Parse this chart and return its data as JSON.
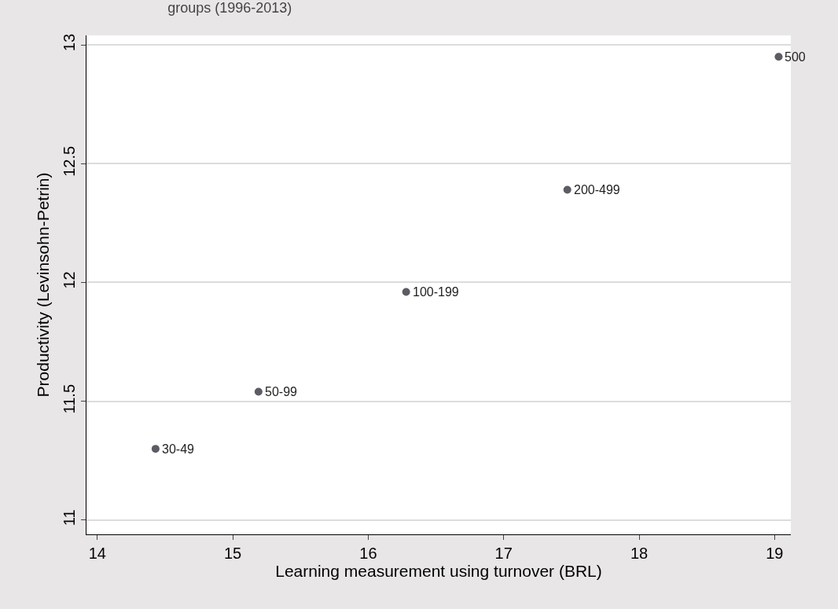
{
  "chart_data": {
    "type": "scatter",
    "title": "groups (1996-2013)",
    "xlabel": "Learning measurement using turnover (BRL)",
    "ylabel": "Productivity (Levinsohn-Petrin)",
    "x": [
      14.43,
      15.19,
      16.28,
      17.47,
      19.03
    ],
    "series": [
      {
        "color": "#5c5c64",
        "values": [
          11.3,
          11.54,
          11.96,
          12.39,
          12.95
        ]
      }
    ],
    "annotations": [
      {
        "text": "30-49",
        "x": 14.43,
        "y": 11.3
      },
      {
        "text": "50-99",
        "x": 15.19,
        "y": 11.54
      },
      {
        "text": "100-199",
        "x": 16.28,
        "y": 11.96
      },
      {
        "text": "200-499",
        "x": 17.47,
        "y": 12.39
      },
      {
        "text": "500",
        "x": 19.03,
        "y": 12.95
      }
    ],
    "xlim": [
      13.92,
      19.12
    ],
    "xticks": [
      14,
      15,
      16,
      17,
      18,
      19
    ],
    "ylim": [
      10.94,
      13.04
    ],
    "yticks": [
      11,
      11.5,
      12,
      12.5,
      13
    ],
    "grid": "y",
    "marker": "circle"
  }
}
